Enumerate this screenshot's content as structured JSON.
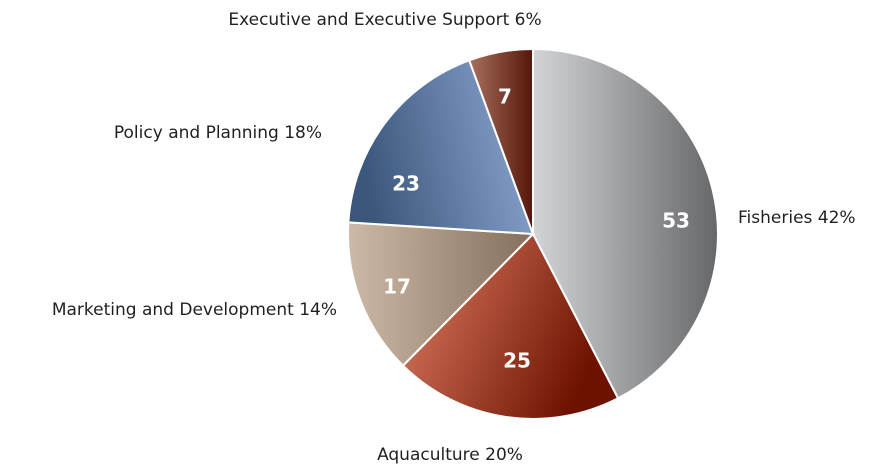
{
  "chart_data": {
    "type": "pie",
    "categories": [
      "Fisheries 42%",
      "Aquaculture 20%",
      "Marketing and Development 14%",
      "Policy and Planning 18%",
      "Executive and Executive Support 6%"
    ],
    "values": [
      53,
      25,
      17,
      23,
      7
    ],
    "colors": [
      [
        "#d3d4d6",
        "#666769"
      ],
      [
        "#e28268",
        "#6e1200"
      ],
      [
        "#cdb9a6",
        "#83705c"
      ],
      [
        "#3b577c",
        "#8fabd6"
      ],
      [
        "#a8705f",
        "#561608"
      ]
    ]
  }
}
